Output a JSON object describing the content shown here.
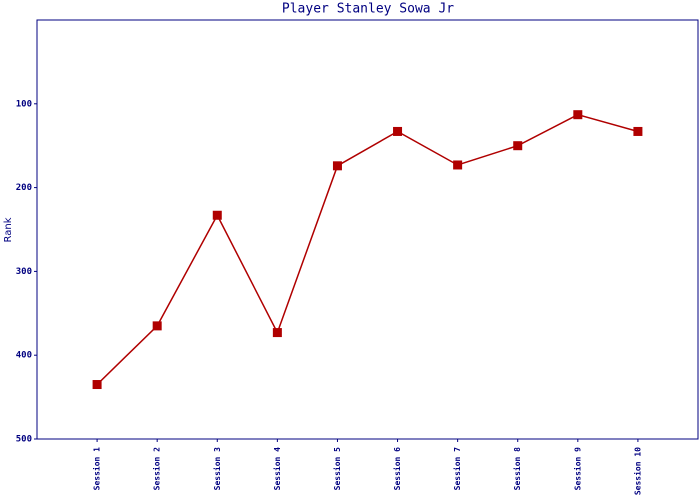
{
  "chart_data": {
    "type": "line",
    "title": "Player Stanley Sowa Jr",
    "y_label": "Rank",
    "categories": [
      "Session 1",
      "Session 2",
      "Session 3",
      "Session 4",
      "Session 5",
      "Session 6",
      "Session 7",
      "Session 8",
      "Session 9",
      "Session 10"
    ],
    "series": [
      {
        "name": "Rank",
        "color": "#b00000",
        "values": [
          435,
          365,
          233,
          373,
          174,
          133,
          173,
          150,
          113,
          133
        ]
      }
    ],
    "ylim": [
      500,
      0
    ],
    "yticks": [
      100,
      200,
      300,
      400,
      500
    ],
    "axis_color": "#000080"
  }
}
